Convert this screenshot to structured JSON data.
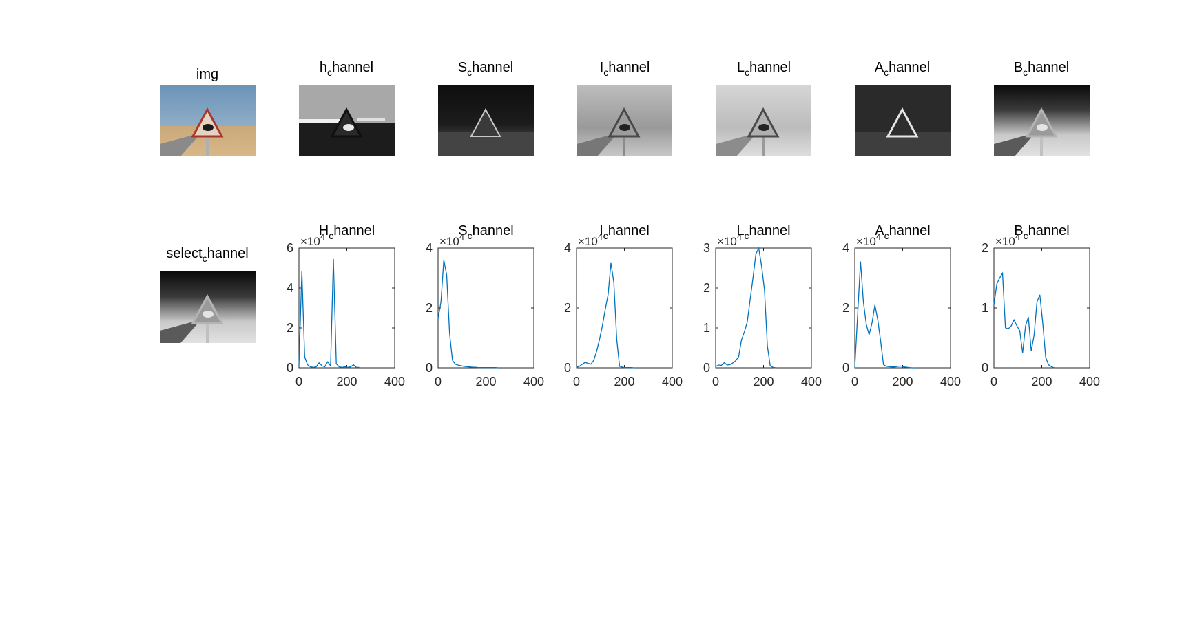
{
  "colors": {
    "line": "#0072bd",
    "axis": "#262626",
    "background": "#ffffff"
  },
  "images": [
    {
      "title": {
        "base": "img",
        "sub": "",
        "rest": ""
      },
      "icon": "color-camel-road-sign-photo"
    },
    {
      "title": {
        "base": "h",
        "sub": "c",
        "rest": "hannel"
      },
      "icon": "hue-channel-image"
    },
    {
      "title": {
        "base": "S",
        "sub": "c",
        "rest": "hannel"
      },
      "icon": "saturation-channel-image"
    },
    {
      "title": {
        "base": "I",
        "sub": "c",
        "rest": "hannel"
      },
      "icon": "intensity-channel-image"
    },
    {
      "title": {
        "base": "L",
        "sub": "c",
        "rest": "hannel"
      },
      "icon": "lightness-channel-image"
    },
    {
      "title": {
        "base": "A",
        "sub": "c",
        "rest": "hannel"
      },
      "icon": "a-channel-image"
    },
    {
      "title": {
        "base": "B",
        "sub": "c",
        "rest": "hannel"
      },
      "icon": "b-channel-image"
    },
    {
      "title": {
        "base": "select",
        "sub": "c",
        "rest": "hannel"
      },
      "icon": "selected-channel-image"
    }
  ],
  "chart_data": [
    {
      "type": "line",
      "title": "H_channel",
      "multiplier": "×10",
      "exponent": "4",
      "ylim": [
        0,
        6
      ],
      "xlim": [
        0,
        400
      ],
      "yticks": [
        "0",
        "2",
        "4",
        "6"
      ],
      "xticks": [
        "0",
        "200",
        "400"
      ],
      "grid": false,
      "x": [
        0,
        12,
        24,
        36,
        48,
        60,
        72,
        84,
        96,
        108,
        120,
        132,
        144,
        156,
        168,
        180,
        192,
        204,
        216,
        228,
        240,
        252
      ],
      "y": [
        0.1,
        4.85,
        0.55,
        0.15,
        0.05,
        0.02,
        0.05,
        0.25,
        0.1,
        0.05,
        0.3,
        0.1,
        5.45,
        0.2,
        0.05,
        0.02,
        0.05,
        0.02,
        0.05,
        0.15,
        0.02,
        0.02
      ]
    },
    {
      "type": "line",
      "title": "S_channel",
      "multiplier": "×10",
      "exponent": "4",
      "ylim": [
        0,
        4
      ],
      "xlim": [
        0,
        400
      ],
      "yticks": [
        "0",
        "2",
        "4"
      ],
      "xticks": [
        "0",
        "200",
        "400"
      ],
      "grid": false,
      "x": [
        0,
        12,
        24,
        36,
        48,
        60,
        72,
        84,
        96,
        108,
        120,
        132,
        144,
        156,
        168,
        180,
        192,
        204,
        216,
        228,
        240,
        252
      ],
      "y": [
        1.65,
        2.2,
        3.6,
        3.1,
        1.15,
        0.25,
        0.12,
        0.09,
        0.07,
        0.05,
        0.04,
        0.03,
        0.02,
        0.02,
        0.01,
        0.01,
        0.01,
        0.01,
        0.01,
        0.01,
        0.01,
        0.0
      ]
    },
    {
      "type": "line",
      "title": "I_channel",
      "multiplier": "×10",
      "exponent": "4",
      "ylim": [
        0,
        4
      ],
      "xlim": [
        0,
        400
      ],
      "yticks": [
        "0",
        "2",
        "4"
      ],
      "xticks": [
        "0",
        "200",
        "400"
      ],
      "grid": false,
      "x": [
        0,
        12,
        24,
        36,
        48,
        60,
        72,
        84,
        96,
        108,
        120,
        132,
        144,
        156,
        168,
        180,
        192,
        204,
        216,
        228,
        240,
        252
      ],
      "y": [
        0.02,
        0.05,
        0.12,
        0.18,
        0.15,
        0.12,
        0.25,
        0.55,
        0.95,
        1.4,
        1.95,
        2.45,
        3.5,
        2.85,
        0.95,
        0.05,
        0.02,
        0.01,
        0.01,
        0.01,
        0.0,
        0.0
      ]
    },
    {
      "type": "line",
      "title": "L_channel",
      "multiplier": "×10",
      "exponent": "4",
      "ylim": [
        0,
        3
      ],
      "xlim": [
        0,
        400
      ],
      "yticks": [
        "0",
        "1",
        "2",
        "3"
      ],
      "xticks": [
        "0",
        "200",
        "400"
      ],
      "grid": false,
      "x": [
        0,
        12,
        24,
        36,
        48,
        60,
        72,
        84,
        96,
        108,
        120,
        132,
        144,
        156,
        168,
        180,
        192,
        204,
        216,
        228,
        240,
        252
      ],
      "y": [
        0.03,
        0.07,
        0.06,
        0.13,
        0.07,
        0.08,
        0.12,
        0.18,
        0.28,
        0.7,
        0.9,
        1.15,
        1.7,
        2.25,
        2.85,
        3.0,
        2.55,
        1.95,
        0.55,
        0.05,
        0.01,
        0.0
      ]
    },
    {
      "type": "line",
      "title": "A_channel",
      "multiplier": "×10",
      "exponent": "4",
      "ylim": [
        0,
        4
      ],
      "xlim": [
        0,
        400
      ],
      "yticks": [
        "0",
        "2",
        "4"
      ],
      "xticks": [
        "0",
        "200",
        "400"
      ],
      "grid": false,
      "x": [
        0,
        12,
        24,
        36,
        48,
        60,
        72,
        84,
        96,
        108,
        120,
        132,
        144,
        156,
        168,
        180,
        192,
        204,
        216,
        228,
        240,
        252
      ],
      "y": [
        0.02,
        1.8,
        3.55,
        2.2,
        1.45,
        1.1,
        1.5,
        2.1,
        1.6,
        0.9,
        0.1,
        0.05,
        0.04,
        0.03,
        0.03,
        0.05,
        0.06,
        0.03,
        0.02,
        0.01,
        0.0,
        0.0
      ]
    },
    {
      "type": "line",
      "title": "B_channel",
      "multiplier": "×10",
      "exponent": "4",
      "ylim": [
        0,
        2
      ],
      "xlim": [
        0,
        400
      ],
      "yticks": [
        "0",
        "1",
        "2"
      ],
      "xticks": [
        "0",
        "200",
        "400"
      ],
      "grid": false,
      "x": [
        0,
        12,
        24,
        36,
        48,
        60,
        72,
        84,
        96,
        108,
        120,
        132,
        144,
        156,
        168,
        180,
        192,
        204,
        216,
        228,
        240,
        252
      ],
      "y": [
        1.05,
        1.4,
        1.5,
        1.58,
        0.67,
        0.65,
        0.7,
        0.8,
        0.7,
        0.62,
        0.25,
        0.7,
        0.85,
        0.28,
        0.55,
        1.1,
        1.22,
        0.75,
        0.18,
        0.05,
        0.02,
        0.0
      ]
    }
  ]
}
